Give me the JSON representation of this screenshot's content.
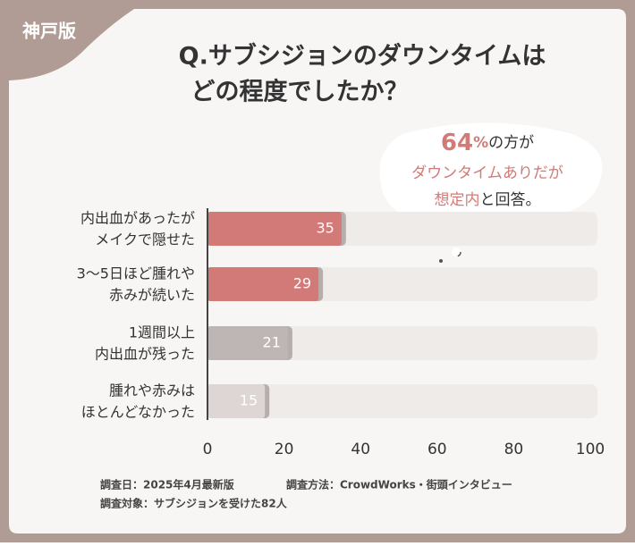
{
  "badge": "神戸版",
  "chart_data": {
    "type": "bar",
    "orientation": "horizontal",
    "title": [
      "Q.サブシジョンのダウンタイムは",
      "どの程度でしたか？"
    ],
    "categories": [
      [
        "内出血があったが",
        "メイクで隠せた"
      ],
      [
        "3～5日ほど腫れや",
        "赤みが続いた"
      ],
      [
        "1週間以上",
        "内出血が残った"
      ],
      [
        "腫れや赤みは",
        "ほとんどなかった"
      ]
    ],
    "values": [
      35,
      29,
      21,
      15
    ],
    "colors": [
      "#d27a78",
      "#d27a78",
      "#bdb6b4",
      "#ddd6d4"
    ],
    "xlim": [
      0,
      100
    ],
    "xticks": [
      0,
      20,
      40,
      60,
      80,
      100
    ],
    "annotation": [
      [
        "64",
        "%",
        "の方が"
      ],
      [
        "ダウンタイムありだが"
      ],
      [
        "想定内",
        "と回答。"
      ]
    ],
    "notes": [
      "調査日：2025年4月最新版",
      "調査方法：CrowdWorks・街頭インタビュー",
      "調査対象：サブシジョンを受けた82人"
    ]
  }
}
